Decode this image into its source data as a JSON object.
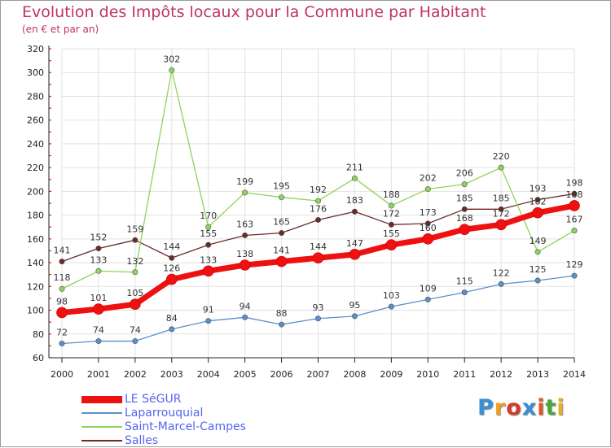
{
  "title": "Evolution des Impôts locaux pour la Commune par Habitant",
  "subtitle": "(en € et par an)",
  "logo": {
    "text": "Proxiti",
    "letter_colors": [
      "#3a8fd6",
      "#f0a020",
      "#d83a2a",
      "#3a8fd6",
      "#e05a20",
      "#49a83a",
      "#e8b020"
    ]
  },
  "chart_data": {
    "type": "line",
    "x": [
      "2000",
      "2001",
      "2002",
      "2003",
      "2004",
      "2005",
      "2006",
      "2007",
      "2008",
      "2009",
      "2010",
      "2011",
      "2012",
      "2013",
      "2014"
    ],
    "ylim": [
      60,
      320
    ],
    "yticks": [
      60,
      80,
      100,
      120,
      140,
      160,
      180,
      200,
      220,
      240,
      260,
      280,
      300,
      320
    ],
    "grid": true,
    "legend_position": "bottom-left",
    "series": [
      {
        "name": "LE SéGUR",
        "color": "#ee1111",
        "width": 7,
        "marker": 6.5,
        "values": [
          98,
          101,
          105,
          126,
          133,
          138,
          141,
          144,
          147,
          155,
          160,
          168,
          172,
          182,
          188
        ]
      },
      {
        "name": "Laparrouquial",
        "color": "#5b8fcc",
        "width": 1.3,
        "marker": 3.2,
        "values": [
          72,
          74,
          74,
          84,
          91,
          94,
          88,
          93,
          95,
          103,
          109,
          115,
          122,
          125,
          129
        ]
      },
      {
        "name": "Saint-Marcel-Campes",
        "color": "#8ed45a",
        "width": 1.3,
        "marker": 3.2,
        "values": [
          118,
          133,
          132,
          302,
          170,
          199,
          195,
          192,
          211,
          188,
          202,
          206,
          220,
          149,
          167
        ]
      },
      {
        "name": "Salles",
        "color": "#6b2a2a",
        "width": 1.3,
        "marker": 3.2,
        "values": [
          141,
          152,
          159,
          144,
          155,
          163,
          165,
          176,
          183,
          172,
          173,
          185,
          185,
          193,
          198
        ]
      }
    ]
  }
}
